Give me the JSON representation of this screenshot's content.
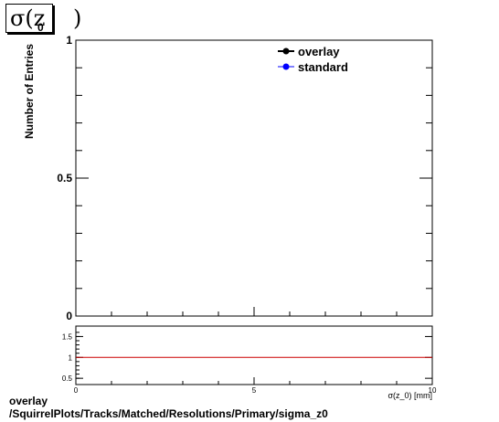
{
  "title": {
    "text": "σ(z",
    "subscript": "0",
    "close": ")"
  },
  "chart_data": [
    {
      "type": "line",
      "title": "σ(z0)",
      "ylabel": "Number of Entries",
      "xlim": [
        0,
        10
      ],
      "ylim": [
        0,
        1
      ],
      "y_ticks": [
        0,
        0.5,
        1
      ],
      "y_tick_labels": [
        "0",
        "0.5",
        "1"
      ],
      "legend_placement": "top-right",
      "series": [
        {
          "name": "overlay",
          "color": "#000000",
          "values": []
        },
        {
          "name": "standard",
          "color": "#0000ff",
          "values": []
        }
      ]
    },
    {
      "type": "line",
      "xlabel": "σ(z_0) [mm]",
      "xlim": [
        0,
        10
      ],
      "ylim": [
        0.35,
        1.75
      ],
      "x_ticks": [
        0,
        5,
        10
      ],
      "x_tick_labels": [
        "0",
        "5",
        "10"
      ],
      "y_ticks": [
        0.5,
        1,
        1.5
      ],
      "y_tick_labels": [
        "0.5",
        "1",
        "1.5"
      ],
      "reference_line": {
        "y": 1,
        "color": "#cc0000"
      }
    }
  ],
  "footer": {
    "line1": "overlay",
    "line2": "/SquirrelPlots/Tracks/Matched/Resolutions/Primary/sigma_z0"
  }
}
